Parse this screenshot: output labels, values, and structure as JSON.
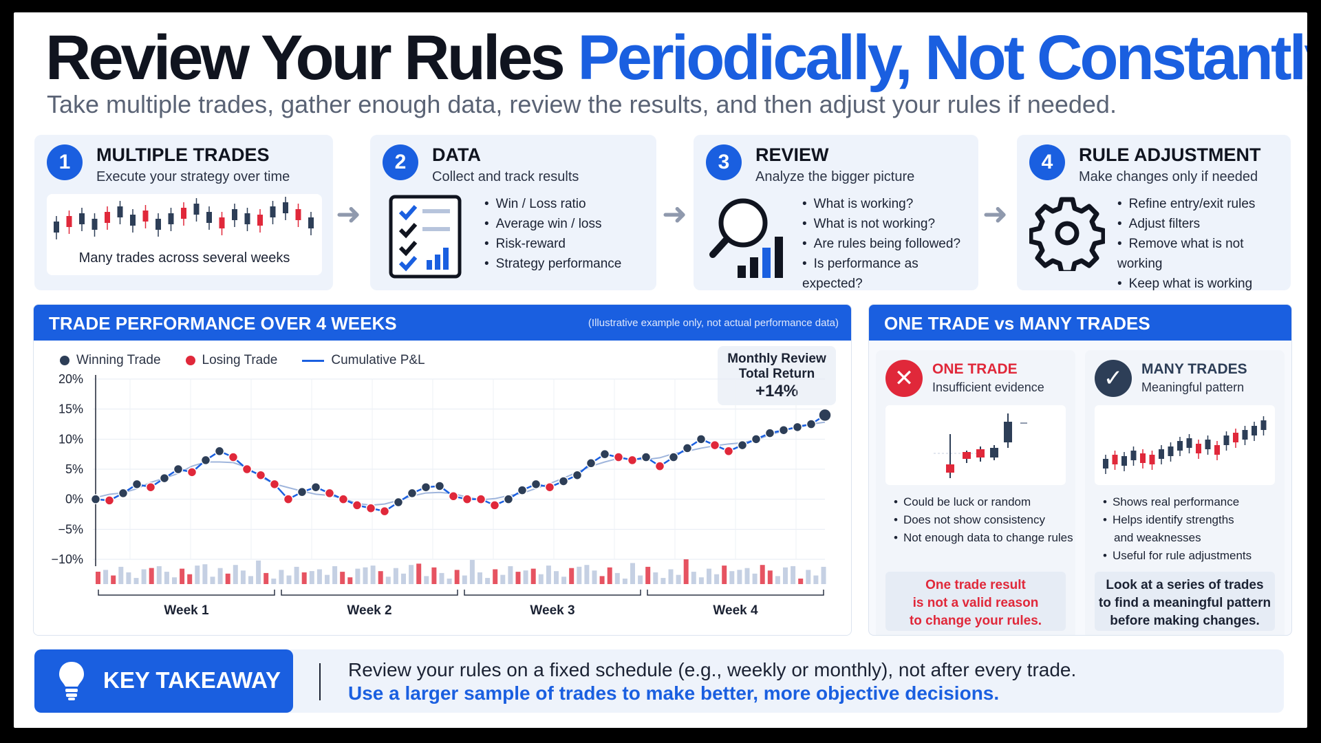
{
  "header": {
    "title_dark": "Review Your Rules",
    "title_blue": "Periodically, Not Constantly",
    "subtitle": "Take multiple trades, gather enough data, review the results, and then adjust your rules if needed."
  },
  "steps": [
    {
      "number": "1",
      "title": "MULTIPLE TRADES",
      "desc": "Execute your strategy over time",
      "caption": "Many trades across several weeks",
      "icon": "candlestick-chart-icon"
    },
    {
      "number": "2",
      "title": "DATA",
      "desc": "Collect and track results",
      "bullets": [
        "Win / Loss ratio",
        "Average win / loss",
        "Risk-reward",
        "Strategy performance"
      ],
      "icon": "checklist-icon"
    },
    {
      "number": "3",
      "title": "REVIEW",
      "desc": "Analyze the bigger picture",
      "bullets": [
        "What is working?",
        "What is not working?",
        "Are rules being followed?",
        "Is performance as expected?"
      ],
      "icon": "magnifier-chart-icon"
    },
    {
      "number": "4",
      "title": "RULE ADJUSTMENT",
      "desc": "Make changes only if needed",
      "bullets": [
        "Refine entry/exit rules",
        "Adjust filters",
        "Remove what is not working",
        "Keep what is working"
      ],
      "icon": "gear-icon"
    }
  ],
  "colors": {
    "accent": "#1a5fe0",
    "win": "#2d3e57",
    "loss": "#e0283a",
    "volume": "#b7c4dc"
  },
  "performance_panel": {
    "title": "TRADE PERFORMANCE OVER 4 WEEKS",
    "note": "(Illustrative example only, not actual performance data)",
    "legend": {
      "win": "Winning Trade",
      "loss": "Losing Trade",
      "line": "Cumulative P&L"
    },
    "monthly": {
      "line1": "Monthly Review",
      "line2": "Total Return",
      "value": "+14%"
    }
  },
  "chart_data": {
    "type": "line",
    "yticks": [
      "20%",
      "15%",
      "10%",
      "5%",
      "0%",
      "−5%",
      "−10%"
    ],
    "ylim": [
      -10,
      20
    ],
    "weeks": [
      "Week 1",
      "Week 2",
      "Week 3",
      "Week 4"
    ],
    "series": [
      {
        "name": "Cumulative P&L",
        "values": [
          0,
          -0.2,
          1.0,
          2.5,
          2.0,
          3.5,
          5.0,
          4.5,
          6.5,
          8.0,
          7.0,
          5.0,
          4.0,
          2.5,
          0,
          1.2,
          2.0,
          1.0,
          0,
          -1.0,
          -1.5,
          -2.0,
          -0.5,
          1.0,
          2.0,
          2.2,
          0.5,
          0,
          0,
          -1.0,
          0,
          1.5,
          2.5,
          2.0,
          3.0,
          4.0,
          6.0,
          7.5,
          7.0,
          6.5,
          7.0,
          5.5,
          7.0,
          8.5,
          10.0,
          9.0,
          8.0,
          9.0,
          10.0,
          11.0,
          11.5,
          12.0,
          12.5,
          14.0
        ]
      }
    ],
    "outcomes": [
      "w",
      "l",
      "w",
      "w",
      "l",
      "w",
      "w",
      "l",
      "w",
      "w",
      "l",
      "l",
      "l",
      "l",
      "l",
      "w",
      "w",
      "l",
      "l",
      "l",
      "l",
      "l",
      "w",
      "w",
      "w",
      "w",
      "l",
      "l",
      "l",
      "l",
      "w",
      "w",
      "w",
      "l",
      "w",
      "w",
      "w",
      "w",
      "l",
      "l",
      "w",
      "l",
      "w",
      "w",
      "w",
      "l",
      "l",
      "w",
      "w",
      "w",
      "w",
      "w",
      "w",
      "w"
    ]
  },
  "compare_panel": {
    "title": "ONE TRADE vs MANY TRADES",
    "one": {
      "title": "ONE TRADE",
      "sub": "Insufficient evidence",
      "bullets": [
        "Could be luck or random",
        "Does not show consistency",
        "Not enough data to change rules"
      ],
      "box": [
        "One trade result",
        "is not a valid reason",
        "to change your rules."
      ],
      "icon": "x-circle-icon"
    },
    "many": {
      "title": "MANY TRADES",
      "sub": "Meaningful pattern",
      "bullets": [
        "Shows real performance",
        "Helps identify strengths",
        "and weaknesses",
        "Useful for rule adjustments"
      ],
      "box": [
        "Look at a series of trades",
        "to find a meaningful pattern",
        "before making changes."
      ],
      "icon": "check-circle-icon"
    }
  },
  "takeaway": {
    "label": "KEY TAKEAWAY",
    "line1": "Review your rules on a fixed schedule (e.g., weekly or monthly), not after every trade.",
    "line2": "Use a larger sample of trades to make better, more objective decisions.",
    "icon": "lightbulb-icon"
  }
}
